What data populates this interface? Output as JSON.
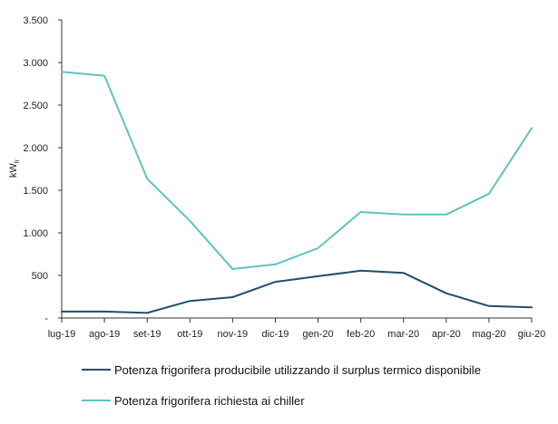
{
  "chart_data": {
    "type": "line",
    "title": "",
    "xlabel": "",
    "ylabel": "kW",
    "ylabel_subscript": "fr",
    "categories": [
      "lug-19",
      "ago-19",
      "set-19",
      "ott-19",
      "nov-19",
      "dic-19",
      "gen-20",
      "feb-20",
      "mar-20",
      "apr-20",
      "mag-20",
      "giu-20"
    ],
    "ylim": [
      0,
      3500
    ],
    "yticks": [
      0,
      500,
      1000,
      1500,
      2000,
      2500,
      3000,
      3500
    ],
    "ytick_labels": [
      "-",
      "500",
      "1.000",
      "1.500",
      "2.000",
      "2.500",
      "3.000",
      "3.500"
    ],
    "grid": false,
    "legend_position": "bottom",
    "series": [
      {
        "name": "Potenza frigorifera producibile utilizzando il surplus termico disponibile",
        "color": "#1f4e6b",
        "values": [
          75,
          75,
          60,
          200,
          245,
          425,
          490,
          555,
          530,
          290,
          140,
          125
        ]
      },
      {
        "name": "Potenza frigorifera richiesta ai chiller",
        "color": "#5ec4bd",
        "values": [
          2890,
          2845,
          1635,
          1140,
          575,
          630,
          820,
          1245,
          1215,
          1215,
          1460,
          2230
        ]
      }
    ]
  }
}
